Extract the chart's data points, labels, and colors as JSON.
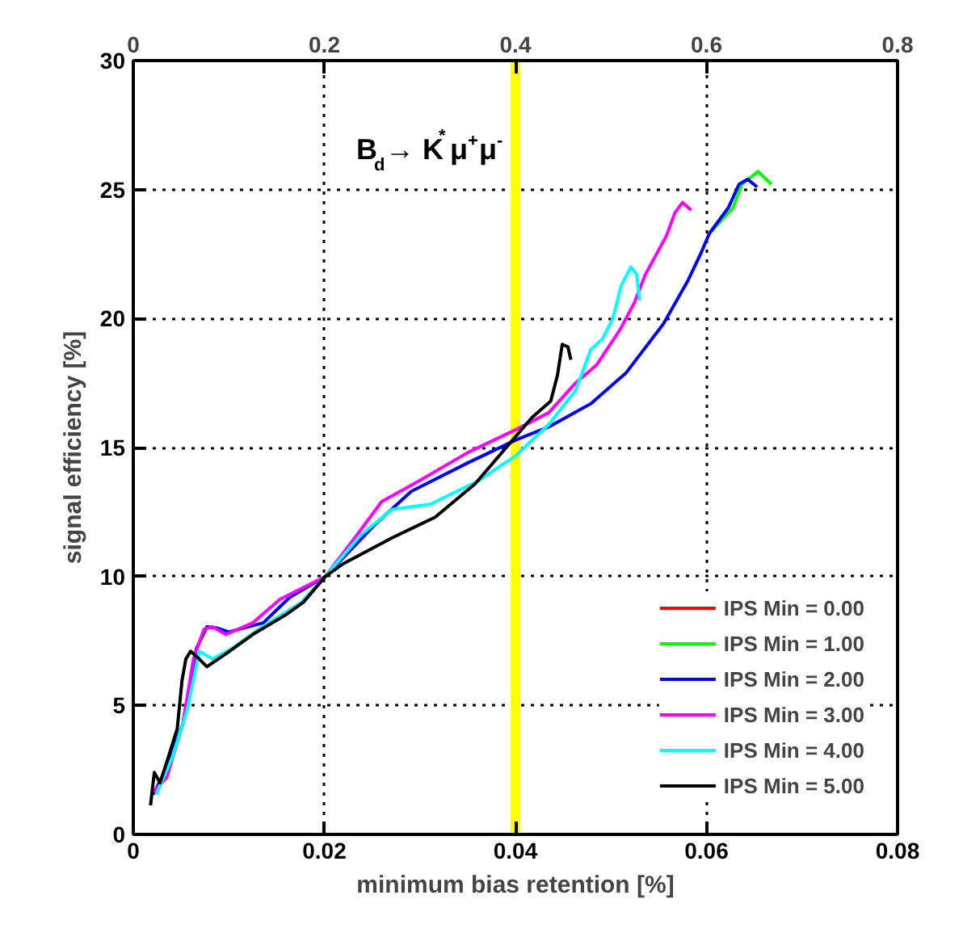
{
  "chart_data": {
    "type": "line",
    "xlabel": "minimum bias retention [%]",
    "ylabel": "signal efficiency [%]",
    "x2label": null,
    "xlim": [
      0,
      0.08
    ],
    "xticks": [
      0,
      0.02,
      0.04,
      0.06,
      0.08
    ],
    "x2lim": [
      0,
      0.8
    ],
    "x2ticks": [
      0,
      0.2,
      0.4,
      0.6,
      0.8
    ],
    "ylim": [
      0,
      30
    ],
    "yticks": [
      0,
      5,
      10,
      15,
      20,
      25,
      30
    ],
    "grid": true,
    "legend": "bottom right",
    "marker": "none",
    "line_style": "solid",
    "annotations": [
      "B$_{d}$→ K$^{*}$μ$^{+}$μ$^{-}$"
    ],
    "bands": [
      {
        "axis": "x",
        "from": 0.0395,
        "to": 0.0405,
        "color": "#ffff00"
      }
    ],
    "series": [
      {
        "name": "IPS Min = 0.00",
        "color": "#ff0000"
      },
      {
        "name": "IPS Min = 1.00",
        "color": "#00ff00",
        "x": [
          0.0603,
          0.0628,
          0.0637,
          0.0654,
          0.0668
        ],
        "values": [
          23.3,
          24.3,
          25.2,
          25.7,
          25.2
        ]
      },
      {
        "name": "IPS Min = 2.00",
        "color": "#0000ff",
        "x": [
          0.0021,
          0.0035,
          0.0052,
          0.0066,
          0.0077,
          0.0088,
          0.01,
          0.0136,
          0.0164,
          0.0201,
          0.0254,
          0.0291,
          0.035,
          0.0401,
          0.0435,
          0.0479,
          0.0516,
          0.0555,
          0.0581,
          0.0595,
          0.0603,
          0.0623,
          0.0634,
          0.0643,
          0.0653
        ],
        "values": [
          1.55,
          2.6,
          4.3,
          7.2,
          8.05,
          8.0,
          7.85,
          8.2,
          9.2,
          10.0,
          12.05,
          13.3,
          14.4,
          15.3,
          15.8,
          16.7,
          17.9,
          19.8,
          21.5,
          22.6,
          23.3,
          24.3,
          25.2,
          25.4,
          25.1
        ]
      },
      {
        "name": "IPS Min = 3.00",
        "color": "#ff00ff",
        "x": [
          0.0021,
          0.0035,
          0.0052,
          0.0063,
          0.0074,
          0.0083,
          0.0097,
          0.0125,
          0.0153,
          0.0201,
          0.0232,
          0.026,
          0.0299,
          0.035,
          0.0401,
          0.0435,
          0.0463,
          0.0485,
          0.051,
          0.0525,
          0.0536,
          0.0558,
          0.0567,
          0.0575,
          0.0584
        ],
        "values": [
          1.65,
          2.2,
          4.3,
          6.8,
          7.95,
          8.05,
          7.75,
          8.2,
          9.1,
          10.0,
          11.5,
          12.9,
          13.7,
          14.8,
          15.7,
          16.35,
          17.5,
          18.2,
          19.6,
          20.65,
          21.7,
          23.2,
          24.1,
          24.5,
          24.2
        ]
      },
      {
        "name": "IPS Min = 4.00",
        "color": "#00ffff",
        "x": [
          0.0024,
          0.0041,
          0.0057,
          0.0069,
          0.0083,
          0.0103,
          0.0131,
          0.0176,
          0.0201,
          0.0238,
          0.0271,
          0.0311,
          0.0361,
          0.0401,
          0.0435,
          0.0463,
          0.0479,
          0.0491,
          0.0502,
          0.0511,
          0.0521,
          0.0527,
          0.053
        ],
        "values": [
          1.55,
          3.0,
          4.9,
          7.1,
          6.8,
          7.2,
          7.95,
          9.0,
          10.0,
          11.6,
          12.6,
          12.8,
          13.7,
          14.7,
          15.9,
          17.2,
          18.8,
          19.2,
          20.0,
          21.3,
          22.0,
          21.7,
          20.7
        ]
      },
      {
        "name": "IPS Min = 5.00",
        "color": "#000000",
        "x": [
          0.0018,
          0.0022,
          0.0028,
          0.0035,
          0.0046,
          0.0051,
          0.0055,
          0.006,
          0.0069,
          0.0077,
          0.0097,
          0.0125,
          0.0159,
          0.0178,
          0.0201,
          0.022,
          0.0271,
          0.0316,
          0.0358,
          0.0395,
          0.0417,
          0.0437,
          0.0444,
          0.0449,
          0.0455,
          0.0458
        ],
        "values": [
          1.13,
          2.4,
          2.0,
          2.8,
          4.1,
          5.97,
          6.8,
          7.1,
          6.8,
          6.5,
          7.0,
          7.75,
          8.5,
          9.0,
          10.0,
          10.5,
          11.5,
          12.3,
          13.6,
          15.2,
          16.15,
          16.8,
          17.8,
          19.0,
          18.9,
          18.4
        ]
      }
    ]
  }
}
